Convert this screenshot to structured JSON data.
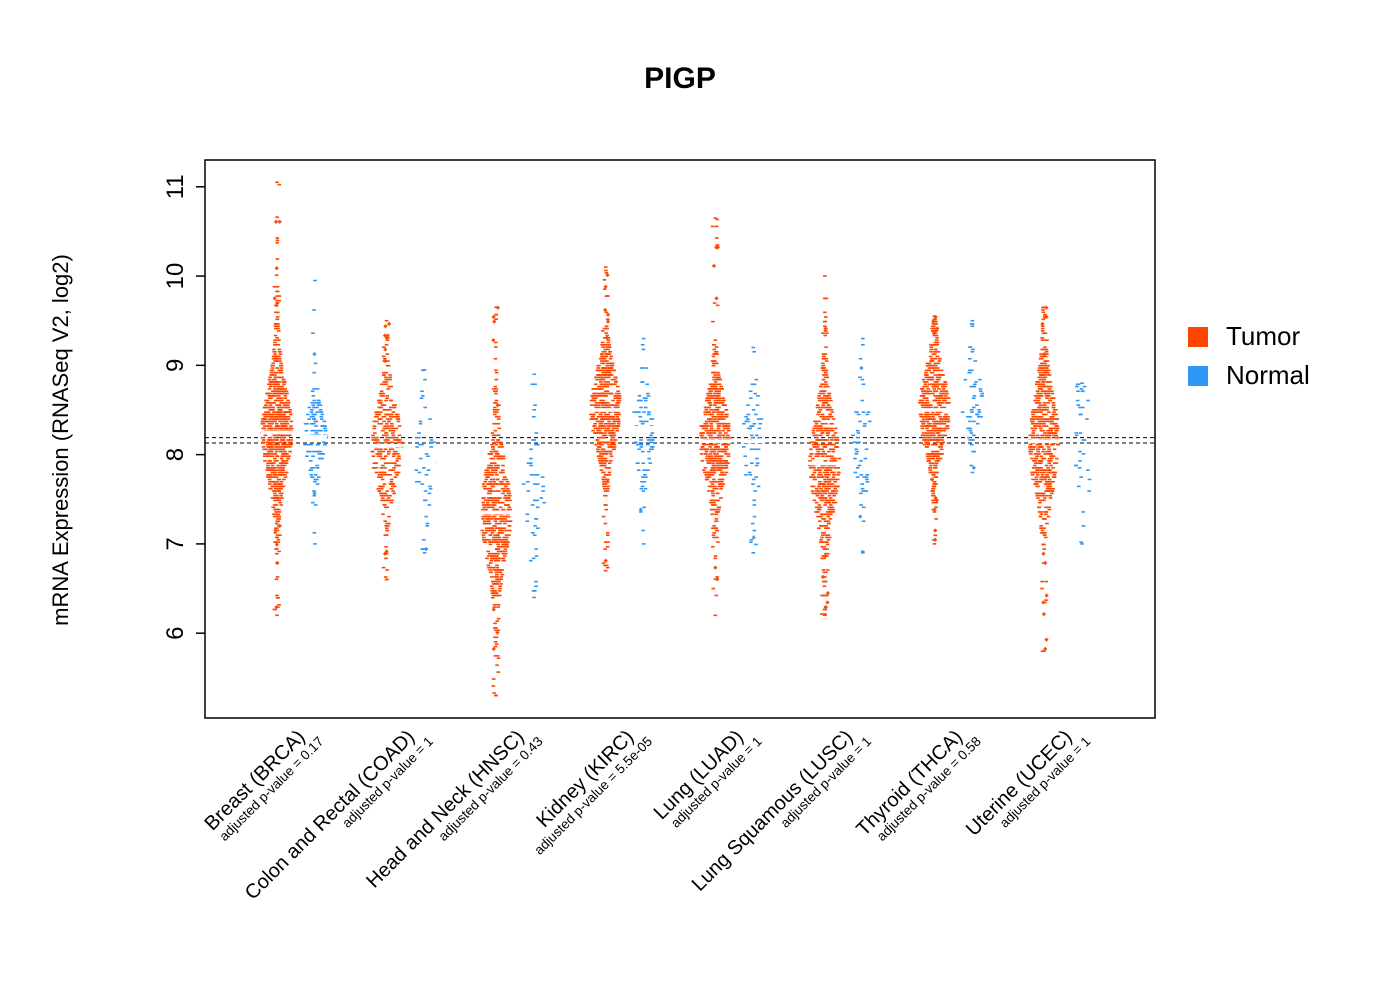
{
  "title": "PIGP",
  "chart_data": {
    "type": "scatter",
    "variant": "beeswarm-violin-strip",
    "title": "PIGP",
    "ylabel": "mRNA Expression (RNASeq V2, log2)",
    "xlabel": "",
    "ylim": [
      5.0,
      11.3
    ],
    "y_ticks": [
      6,
      7,
      8,
      9,
      10,
      11
    ],
    "grid": false,
    "reference_lines_y": [
      8.13,
      8.19
    ],
    "reference_line_style": "dashed",
    "legend_position": "right",
    "legend": [
      "Tumor",
      "Normal"
    ],
    "colors": {
      "tumor": "#FF4500",
      "normal": "#2E96F5"
    },
    "categories": [
      {
        "label": "Breast (BRCA)",
        "sublabel": "adjusted p-value = 0.17",
        "tumor": {
          "median": 8.25,
          "q1": 7.9,
          "q3": 8.55,
          "min": 6.2,
          "max": 11.05,
          "n_points": 700
        },
        "normal": {
          "median": 8.2,
          "q1": 8.0,
          "q3": 8.4,
          "min": 7.0,
          "max": 9.95,
          "n_points": 110
        }
      },
      {
        "label": "Colon and Rectal (COAD)",
        "sublabel": "adjusted p-value = 1",
        "tumor": {
          "median": 8.1,
          "q1": 7.75,
          "q3": 8.35,
          "min": 6.6,
          "max": 9.5,
          "n_points": 300
        },
        "normal": {
          "median": 7.9,
          "q1": 7.55,
          "q3": 8.2,
          "min": 6.9,
          "max": 8.95,
          "n_points": 42
        }
      },
      {
        "label": "Head and Neck (HNSC)",
        "sublabel": "adjusted p-value = 0.43",
        "tumor": {
          "median": 7.35,
          "q1": 7.0,
          "q3": 7.7,
          "min": 5.3,
          "max": 9.65,
          "n_points": 500
        },
        "normal": {
          "median": 7.55,
          "q1": 7.2,
          "q3": 7.85,
          "min": 6.4,
          "max": 8.9,
          "n_points": 44
        }
      },
      {
        "label": "Kidney (KIRC)",
        "sublabel": "adjusted p-value = 5.5e-05",
        "tumor": {
          "median": 8.5,
          "q1": 8.2,
          "q3": 8.75,
          "min": 6.7,
          "max": 10.1,
          "n_points": 520
        },
        "normal": {
          "median": 8.3,
          "q1": 8.05,
          "q3": 8.55,
          "min": 7.0,
          "max": 9.3,
          "n_points": 72
        }
      },
      {
        "label": "Lung (LUAD)",
        "sublabel": "adjusted p-value = 1",
        "tumor": {
          "median": 8.15,
          "q1": 7.85,
          "q3": 8.45,
          "min": 6.2,
          "max": 10.65,
          "n_points": 500
        },
        "normal": {
          "median": 8.15,
          "q1": 7.8,
          "q3": 8.35,
          "min": 6.9,
          "max": 9.2,
          "n_points": 58
        }
      },
      {
        "label": "Lung Squamous (LUSC)",
        "sublabel": "adjusted p-value = 1",
        "tumor": {
          "median": 7.9,
          "q1": 7.55,
          "q3": 8.25,
          "min": 6.2,
          "max": 10.0,
          "n_points": 480
        },
        "normal": {
          "median": 8.1,
          "q1": 7.8,
          "q3": 8.3,
          "min": 6.9,
          "max": 9.3,
          "n_points": 50
        }
      },
      {
        "label": "Thyroid (THCA)",
        "sublabel": "adjusted p-value = 0.58",
        "tumor": {
          "median": 8.5,
          "q1": 8.25,
          "q3": 8.8,
          "min": 7.0,
          "max": 9.55,
          "n_points": 480
        },
        "normal": {
          "median": 8.6,
          "q1": 8.4,
          "q3": 8.8,
          "min": 7.8,
          "max": 9.5,
          "n_points": 59
        }
      },
      {
        "label": "Uterine (UCEC)",
        "sublabel": "adjusted p-value = 1",
        "tumor": {
          "median": 8.15,
          "q1": 7.75,
          "q3": 8.45,
          "min": 5.8,
          "max": 9.65,
          "n_points": 520
        },
        "normal": {
          "median": 8.1,
          "q1": 7.6,
          "q3": 8.35,
          "min": 7.0,
          "max": 8.8,
          "n_points": 35
        }
      }
    ]
  }
}
